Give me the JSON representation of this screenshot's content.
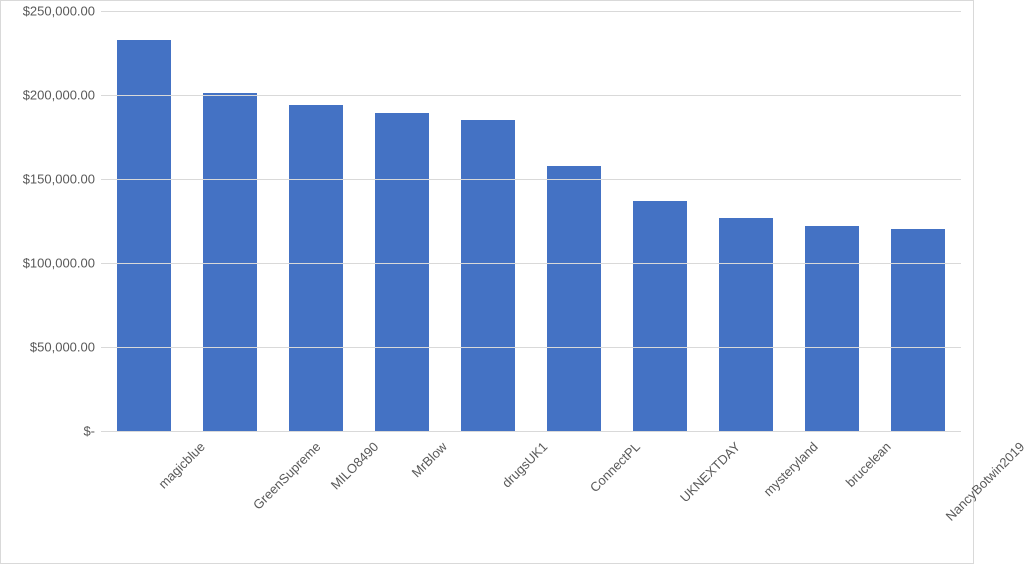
{
  "chart": {
    "type": "bar",
    "categories": [
      "magicblue",
      "GreenSupreme",
      "MILO8490",
      "MrBlow",
      "drugsUK1",
      "ConnectPL",
      "UKNEXTDAY",
      "mysteryland",
      "brucelean",
      "NancyBotwin2019"
    ],
    "values": [
      233000,
      201000,
      194000,
      189000,
      185000,
      158000,
      137000,
      127000,
      122000,
      120000
    ],
    "bar_color": "#4472c4",
    "background_color": "#ffffff",
    "grid_color": "#d9d9d9",
    "ylim": [
      0,
      250000
    ],
    "ytick_step": 50000,
    "ytick_labels": [
      "$-",
      "$50,000.00",
      "$100,000.00",
      "$150,000.00",
      "$200,000.00",
      "$250,000.00"
    ],
    "tick_fontsize": 13,
    "tick_color": "#595959",
    "bar_width": 0.62,
    "x_label_rotation_deg": -45
  }
}
